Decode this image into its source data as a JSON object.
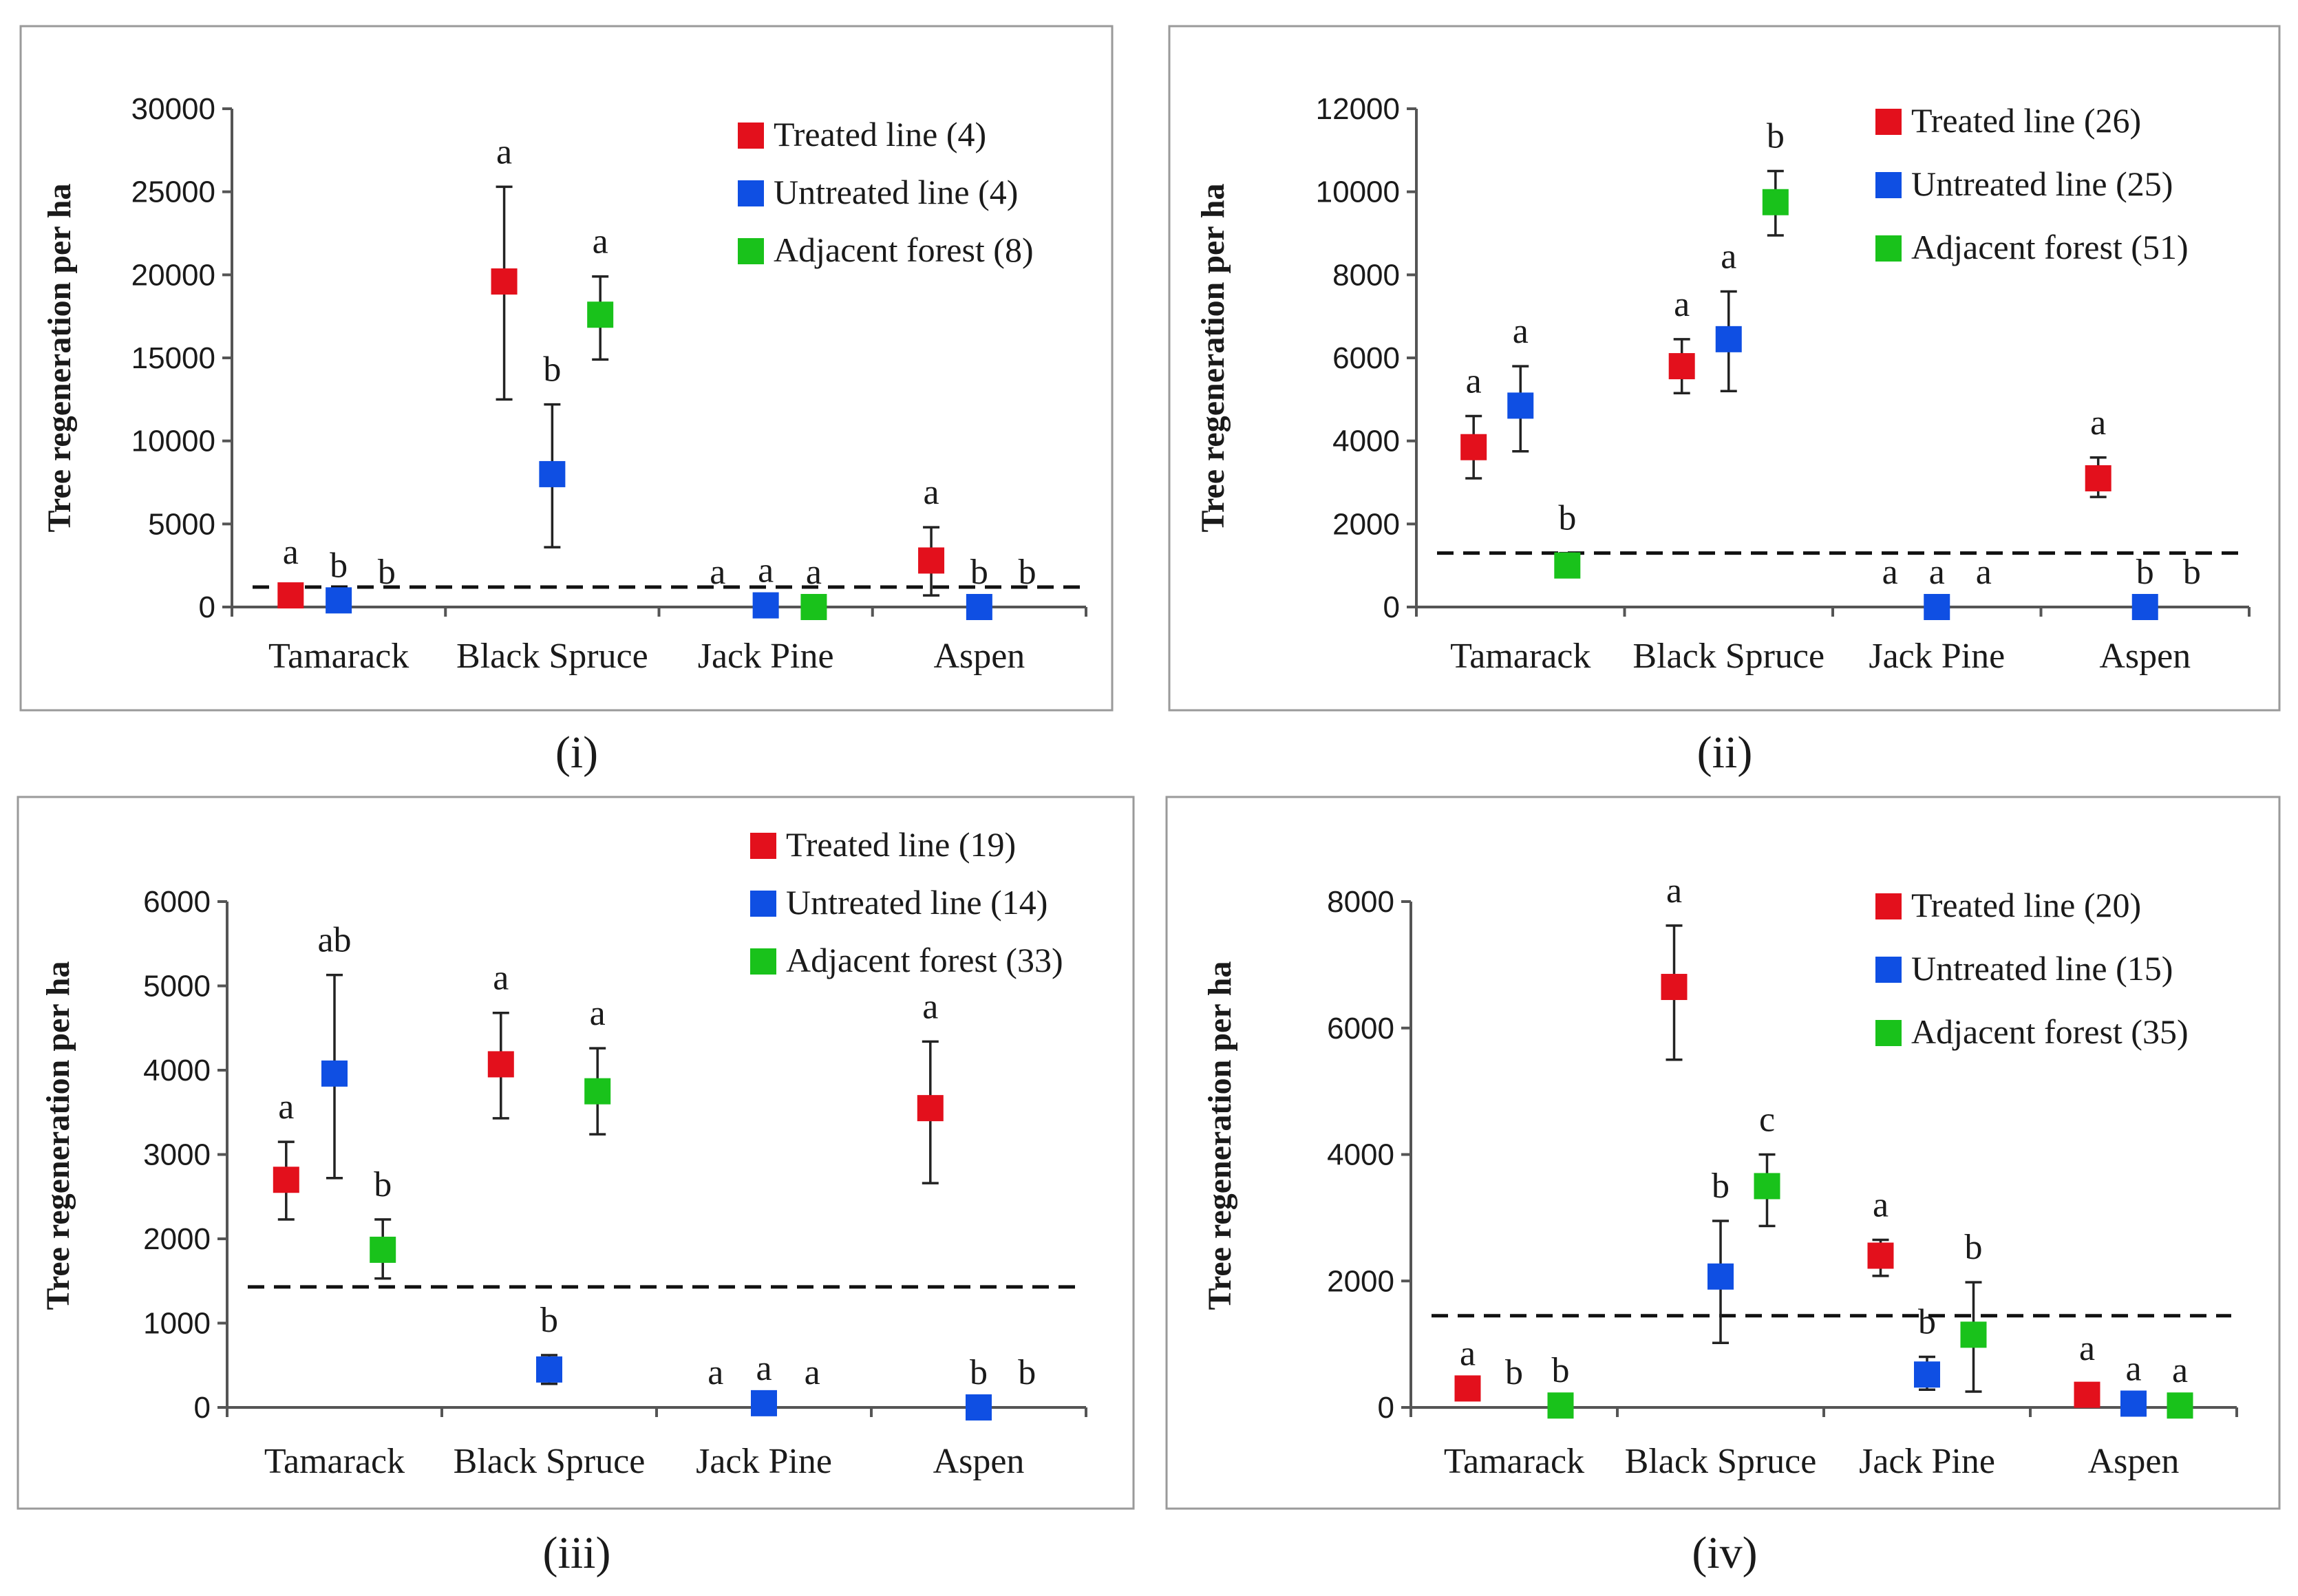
{
  "categories": [
    "Tamarack",
    "Black Spruce",
    "Jack Pine",
    "Aspen"
  ],
  "colors": {
    "Treated line": "#e3101c",
    "Untreated line": "#0f4fe3",
    "Adjacent forest": "#19c21b"
  },
  "chart_data": [
    {
      "type": "scatter",
      "panel_label": "(i)",
      "ylabel": "Tree regeneration per ha",
      "ylim": [
        0,
        30000
      ],
      "yticks": [
        0,
        5000,
        10000,
        15000,
        20000,
        25000,
        30000
      ],
      "threshold": 1200,
      "categories": [
        "Tamarack",
        "Black Spruce",
        "Jack Pine",
        "Aspen"
      ],
      "series": [
        {
          "name": "Treated line",
          "legend": "Treated line (4)",
          "values": [
            700,
            19600,
            0,
            2800
          ],
          "lower": [
            0,
            12500,
            0,
            700
          ],
          "upper": [
            1200,
            25300,
            0,
            4800
          ],
          "letters": [
            "a",
            "a",
            "a",
            "a"
          ],
          "show_marker": [
            true,
            true,
            false,
            true
          ]
        },
        {
          "name": "Untreated line",
          "legend": "Untreated line (4)",
          "values": [
            400,
            8000,
            100,
            0
          ],
          "lower": [
            400,
            3600,
            100,
            0
          ],
          "upper": [
            400,
            12200,
            100,
            0
          ],
          "letters": [
            "b",
            "b",
            "a",
            "b"
          ],
          "show_marker": [
            true,
            true,
            true,
            true
          ]
        },
        {
          "name": "Adjacent forest",
          "legend": "Adjacent forest (8)",
          "values": [
            0,
            17600,
            0,
            0
          ],
          "lower": [
            0,
            14900,
            0,
            0
          ],
          "upper": [
            0,
            19900,
            0,
            0
          ],
          "letters": [
            "b",
            "a",
            "a",
            "b"
          ],
          "show_marker": [
            false,
            true,
            true,
            false
          ]
        }
      ]
    },
    {
      "type": "scatter",
      "panel_label": "(ii)",
      "ylabel": "Tree regeneration per ha",
      "ylim": [
        0,
        12000
      ],
      "yticks": [
        0,
        2000,
        4000,
        6000,
        8000,
        10000,
        12000
      ],
      "threshold": 1300,
      "categories": [
        "Tamarack",
        "Black Spruce",
        "Jack Pine",
        "Aspen"
      ],
      "series": [
        {
          "name": "Treated line",
          "legend": "Treated line (26)",
          "values": [
            3850,
            5800,
            0,
            3100
          ],
          "lower": [
            3100,
            5150,
            0,
            2650
          ],
          "upper": [
            4600,
            6450,
            0,
            3600
          ],
          "letters": [
            "a",
            "a",
            "a",
            "a"
          ],
          "show_marker": [
            true,
            true,
            false,
            true
          ]
        },
        {
          "name": "Untreated line",
          "legend": "Untreated line (25)",
          "values": [
            4850,
            6450,
            0,
            0
          ],
          "lower": [
            3750,
            5200,
            0,
            0
          ],
          "upper": [
            5800,
            7600,
            0,
            0
          ],
          "letters": [
            "a",
            "a",
            "a",
            "b"
          ],
          "show_marker": [
            true,
            true,
            true,
            true
          ]
        },
        {
          "name": "Adjacent forest",
          "legend": "Adjacent forest (51)",
          "values": [
            1000,
            9750,
            0,
            0
          ],
          "lower": [
            750,
            8950,
            0,
            0
          ],
          "upper": [
            1300,
            10500,
            0,
            0
          ],
          "letters": [
            "b",
            "b",
            "a",
            "b"
          ],
          "show_marker": [
            true,
            true,
            false,
            false
          ]
        }
      ]
    },
    {
      "type": "scatter",
      "panel_label": "(iii)",
      "ylabel": "Tree regeneration per ha",
      "ylim": [
        0,
        6000
      ],
      "yticks": [
        0,
        1000,
        2000,
        3000,
        4000,
        5000,
        6000
      ],
      "threshold": 1430,
      "categories": [
        "Tamarack",
        "Black Spruce",
        "Jack Pine",
        "Aspen"
      ],
      "series": [
        {
          "name": "Treated line",
          "legend": "Treated line (19)",
          "values": [
            2700,
            4070,
            0,
            3550
          ],
          "lower": [
            2230,
            3430,
            0,
            2660
          ],
          "upper": [
            3150,
            4680,
            0,
            4340
          ],
          "letters": [
            "a",
            "a",
            "a",
            "a"
          ],
          "show_marker": [
            true,
            true,
            false,
            true
          ]
        },
        {
          "name": "Untreated line",
          "legend": "Untreated line (14)",
          "values": [
            3960,
            450,
            50,
            0
          ],
          "lower": [
            2720,
            280,
            50,
            0
          ],
          "upper": [
            5130,
            620,
            50,
            0
          ],
          "letters": [
            "ab",
            "b",
            "a",
            "b"
          ],
          "show_marker": [
            true,
            true,
            true,
            true
          ]
        },
        {
          "name": "Adjacent forest",
          "legend": "Adjacent forest (33)",
          "values": [
            1870,
            3750,
            0,
            0
          ],
          "lower": [
            1530,
            3240,
            0,
            0
          ],
          "upper": [
            2230,
            4260,
            0,
            0
          ],
          "letters": [
            "b",
            "a",
            "a",
            "b"
          ],
          "show_marker": [
            true,
            true,
            false,
            false
          ]
        }
      ]
    },
    {
      "type": "scatter",
      "panel_label": "(iv)",
      "ylabel": "Tree regeneration per ha",
      "ylim": [
        0,
        8000
      ],
      "yticks": [
        0,
        2000,
        4000,
        6000,
        8000
      ],
      "threshold": 1450,
      "categories": [
        "Tamarack",
        "Black Spruce",
        "Jack Pine",
        "Aspen"
      ],
      "series": [
        {
          "name": "Treated line",
          "legend": "Treated line (20)",
          "values": [
            300,
            6650,
            2400,
            200
          ],
          "lower": [
            300,
            5500,
            2080,
            120
          ],
          "upper": [
            300,
            7620,
            2650,
            380
          ],
          "letters": [
            "a",
            "a",
            "a",
            "a"
          ],
          "show_marker": [
            true,
            true,
            true,
            true
          ]
        },
        {
          "name": "Untreated line",
          "legend": "Untreated line (15)",
          "values": [
            0,
            2070,
            520,
            60
          ],
          "lower": [
            0,
            1020,
            280,
            60
          ],
          "upper": [
            0,
            2950,
            800,
            60
          ],
          "letters": [
            "b",
            "b",
            "b",
            "a"
          ],
          "show_marker": [
            false,
            true,
            true,
            true
          ]
        },
        {
          "name": "Adjacent forest",
          "legend": "Adjacent forest (35)",
          "values": [
            30,
            3500,
            1150,
            30
          ],
          "lower": [
            30,
            2870,
            250,
            30
          ],
          "upper": [
            30,
            4000,
            1980,
            30
          ],
          "letters": [
            "b",
            "c",
            "b",
            "a"
          ],
          "show_marker": [
            true,
            true,
            true,
            true
          ]
        }
      ]
    }
  ]
}
